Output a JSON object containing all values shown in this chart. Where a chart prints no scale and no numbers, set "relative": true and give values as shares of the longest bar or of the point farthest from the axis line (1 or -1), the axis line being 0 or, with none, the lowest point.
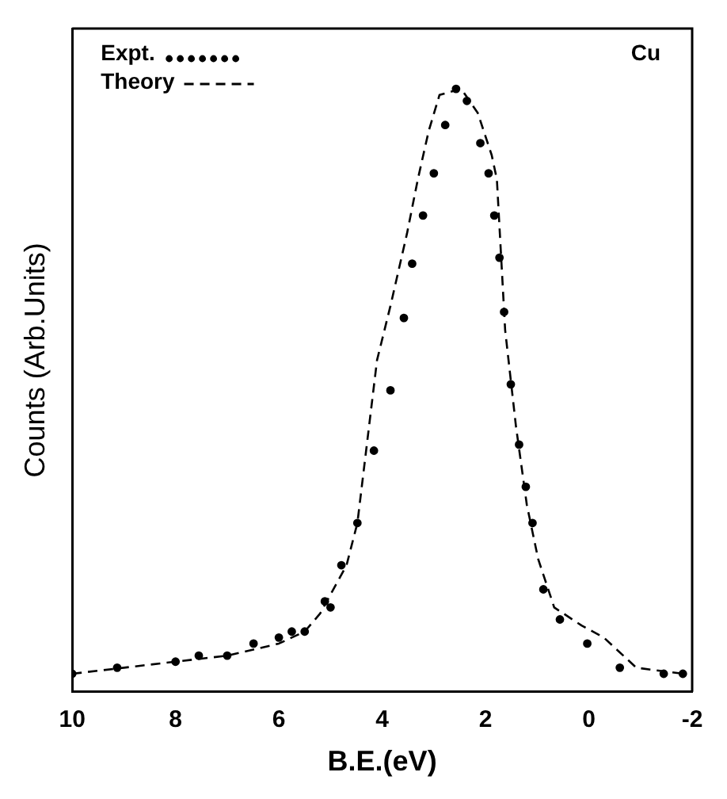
{
  "chart_data": {
    "type": "line",
    "xlabel": "B.E.(eV)",
    "ylabel": "Counts (Arb.Units)",
    "relative": true,
    "xlim": [
      10,
      -2
    ],
    "xticks": [
      10,
      8,
      6,
      4,
      2,
      0,
      -2
    ],
    "grid": false,
    "legend": "top left",
    "annotations": [
      "Cu"
    ],
    "series": [
      {
        "name": "Expt.",
        "type": "scatter",
        "marker": "circle",
        "color": "#000000",
        "x": [
          10,
          9.13,
          8,
          7.55,
          7,
          6.49,
          6,
          5.75,
          5.5,
          5.11,
          5,
          4.79,
          4.48,
          4.16,
          3.84,
          3.58,
          3.42,
          3.21,
          3.0,
          2.78,
          2.57,
          2.36,
          2.1,
          1.94,
          1.83,
          1.73,
          1.64,
          1.51,
          1.35,
          1.22,
          1.09,
          0.88,
          0.56,
          0.03,
          -0.6,
          -1.45,
          -1.82
        ],
        "values": [
          0.03,
          0.04,
          0.05,
          0.06,
          0.06,
          0.08,
          0.09,
          0.1,
          0.1,
          0.15,
          0.14,
          0.21,
          0.28,
          0.4,
          0.5,
          0.62,
          0.71,
          0.79,
          0.86,
          0.94,
          1.0,
          0.98,
          0.91,
          0.86,
          0.79,
          0.72,
          0.63,
          0.51,
          0.41,
          0.34,
          0.28,
          0.17,
          0.12,
          0.08,
          0.04,
          0.03,
          0.03
        ]
      },
      {
        "name": "Theory",
        "line_style": "dashed",
        "marker": "none",
        "color": "#000000",
        "x": [
          10,
          9,
          8,
          7,
          6,
          5.5,
          5.2,
          4.69,
          4.48,
          4.1,
          3.84,
          3.52,
          3.31,
          3.1,
          2.89,
          2.47,
          2.15,
          1.88,
          1.78,
          1.62,
          1.41,
          1.2,
          0.98,
          0.67,
          0.14,
          -0.29,
          -0.92,
          -1.82
        ],
        "values": [
          0.03,
          0.04,
          0.05,
          0.06,
          0.08,
          0.1,
          0.13,
          0.21,
          0.28,
          0.55,
          0.64,
          0.76,
          0.85,
          0.93,
          0.99,
          1.0,
          0.96,
          0.89,
          0.85,
          0.6,
          0.44,
          0.31,
          0.22,
          0.14,
          0.11,
          0.09,
          0.04,
          0.03
        ]
      }
    ]
  }
}
